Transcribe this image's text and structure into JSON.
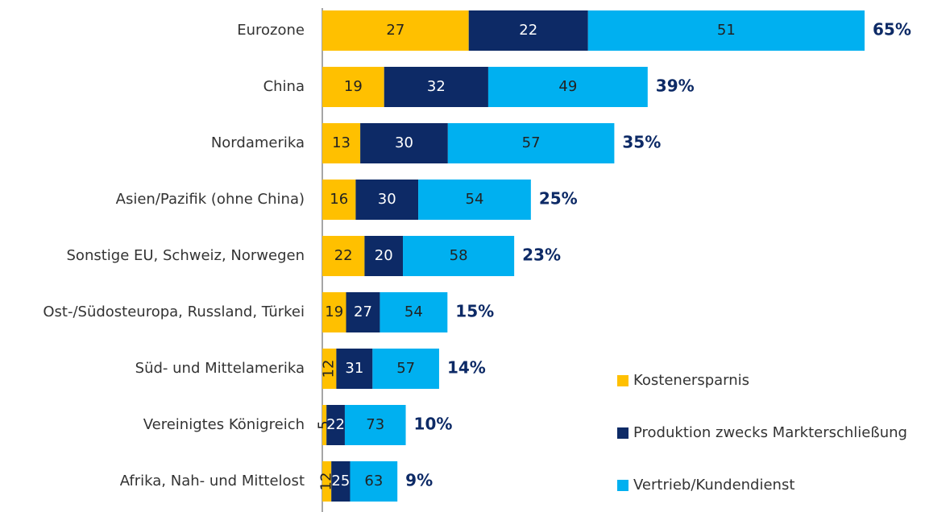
{
  "chart_data": {
    "type": "bar",
    "categories": [
      "Eurozone",
      "China",
      "Nordamerika",
      "Asien/Pazifik (ohne China)",
      "Sonstige EU, Schweiz, Norwegen",
      "Ost-/Südosteuropa, Russland, Türkei",
      "Süd- und Mittelamerika",
      "Vereinigtes Königreich",
      "Afrika, Nah- und Mittelost"
    ],
    "totals": [
      65,
      39,
      35,
      25,
      23,
      15,
      14,
      10,
      9
    ],
    "total_labels": [
      "65%",
      "39%",
      "35%",
      "25%",
      "23%",
      "15%",
      "14%",
      "10%",
      "9%"
    ],
    "series": [
      {
        "name": "Kostenersparnis",
        "color": "#FFC000",
        "values": [
          27,
          19,
          13,
          16,
          22,
          19,
          12,
          5,
          12
        ]
      },
      {
        "name": "Produktion zwecks Markterschließung",
        "color": "#0D2A66",
        "values": [
          22,
          32,
          30,
          30,
          20,
          27,
          31,
          22,
          25
        ]
      },
      {
        "name": "Vertrieb/Kundendienst",
        "color": "#00B0F0",
        "values": [
          51,
          49,
          57,
          54,
          58,
          54,
          57,
          73,
          63
        ]
      }
    ]
  }
}
